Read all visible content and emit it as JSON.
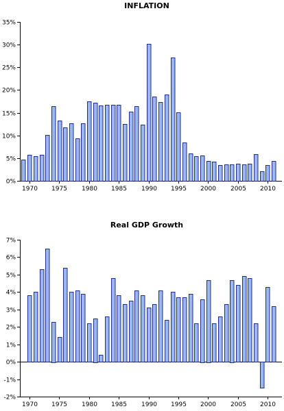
{
  "chart_data": [
    {
      "type": "bar",
      "title": "INFLATION",
      "xlabel": "",
      "ylabel": "",
      "ylim": [
        0,
        35
      ],
      "y_ticks": [
        0,
        5,
        10,
        15,
        20,
        25,
        30,
        35
      ],
      "y_tick_labels": [
        "0%",
        "5%",
        "10%",
        "15%",
        "20%",
        "25%",
        "30%",
        "35%"
      ],
      "x_tick_years": [
        1970,
        1975,
        1980,
        1985,
        1990,
        1995,
        2000,
        2005,
        2010
      ],
      "x_tick_labels": [
        "1970",
        "1975",
        "1980",
        "1985",
        "1990",
        "1995",
        "2000",
        "2005",
        "2010"
      ],
      "grid": false,
      "categories": [
        1969,
        1970,
        1971,
        1972,
        1973,
        1974,
        1975,
        1976,
        1977,
        1978,
        1979,
        1980,
        1981,
        1982,
        1983,
        1984,
        1985,
        1986,
        1987,
        1988,
        1989,
        1990,
        1991,
        1992,
        1993,
        1994,
        1995,
        1996,
        1997,
        1998,
        1999,
        2000,
        2001,
        2002,
        2003,
        2004,
        2005,
        2006,
        2007,
        2008,
        2009,
        2010,
        2011
      ],
      "values": [
        4.7,
        5.8,
        5.5,
        5.8,
        10.1,
        16.4,
        13.3,
        11.7,
        12.6,
        9.4,
        12.6,
        17.5,
        17.2,
        16.6,
        16.8,
        16.8,
        16.8,
        12.5,
        15.2,
        16.4,
        12.4,
        30.2,
        18.5,
        17.3,
        19.0,
        27.1,
        15.1,
        8.5,
        6.0,
        5.4,
        5.6,
        4.4,
        4.2,
        3.5,
        3.6,
        3.6,
        3.7,
        3.6,
        3.7,
        5.9,
        2.1,
        3.4,
        4.3
      ]
    },
    {
      "type": "bar",
      "title": "Real GDP Growth",
      "xlabel": "",
      "ylabel": "",
      "ylim": [
        -2,
        7
      ],
      "y_ticks": [
        -2,
        -1,
        0,
        1,
        2,
        3,
        4,
        5,
        6,
        7
      ],
      "y_tick_labels": [
        "-2%",
        "-1%",
        "0%",
        "1%",
        "2%",
        "3%",
        "4%",
        "5%",
        "6%",
        "7%"
      ],
      "x_tick_years": [
        1970,
        1975,
        1980,
        1985,
        1990,
        1995,
        2000,
        2005,
        2010
      ],
      "x_tick_labels": [
        "1970",
        "1975",
        "1980",
        "1985",
        "1990",
        "1995",
        "2000",
        "2005",
        "2010"
      ],
      "grid": false,
      "categories": [
        1970,
        1971,
        1972,
        1973,
        1974,
        1975,
        1976,
        1977,
        1978,
        1979,
        1980,
        1981,
        1982,
        1983,
        1984,
        1985,
        1986,
        1987,
        1988,
        1989,
        1990,
        1991,
        1992,
        1993,
        1994,
        1995,
        1996,
        1997,
        1998,
        1999,
        2000,
        2001,
        2002,
        2003,
        2004,
        2005,
        2006,
        2007,
        2008,
        2009,
        2010,
        2011
      ],
      "values": [
        3.8,
        4.0,
        5.3,
        6.5,
        2.3,
        1.4,
        5.4,
        4.0,
        4.1,
        3.9,
        2.2,
        2.5,
        0.4,
        2.6,
        4.8,
        3.8,
        3.3,
        3.5,
        4.1,
        3.8,
        3.1,
        3.3,
        4.1,
        2.4,
        4.0,
        3.7,
        3.7,
        3.9,
        2.2,
        3.6,
        4.7,
        2.2,
        2.6,
        3.3,
        4.7,
        4.4,
        4.9,
        4.8,
        2.2,
        -1.5,
        4.3,
        3.2
      ]
    }
  ]
}
